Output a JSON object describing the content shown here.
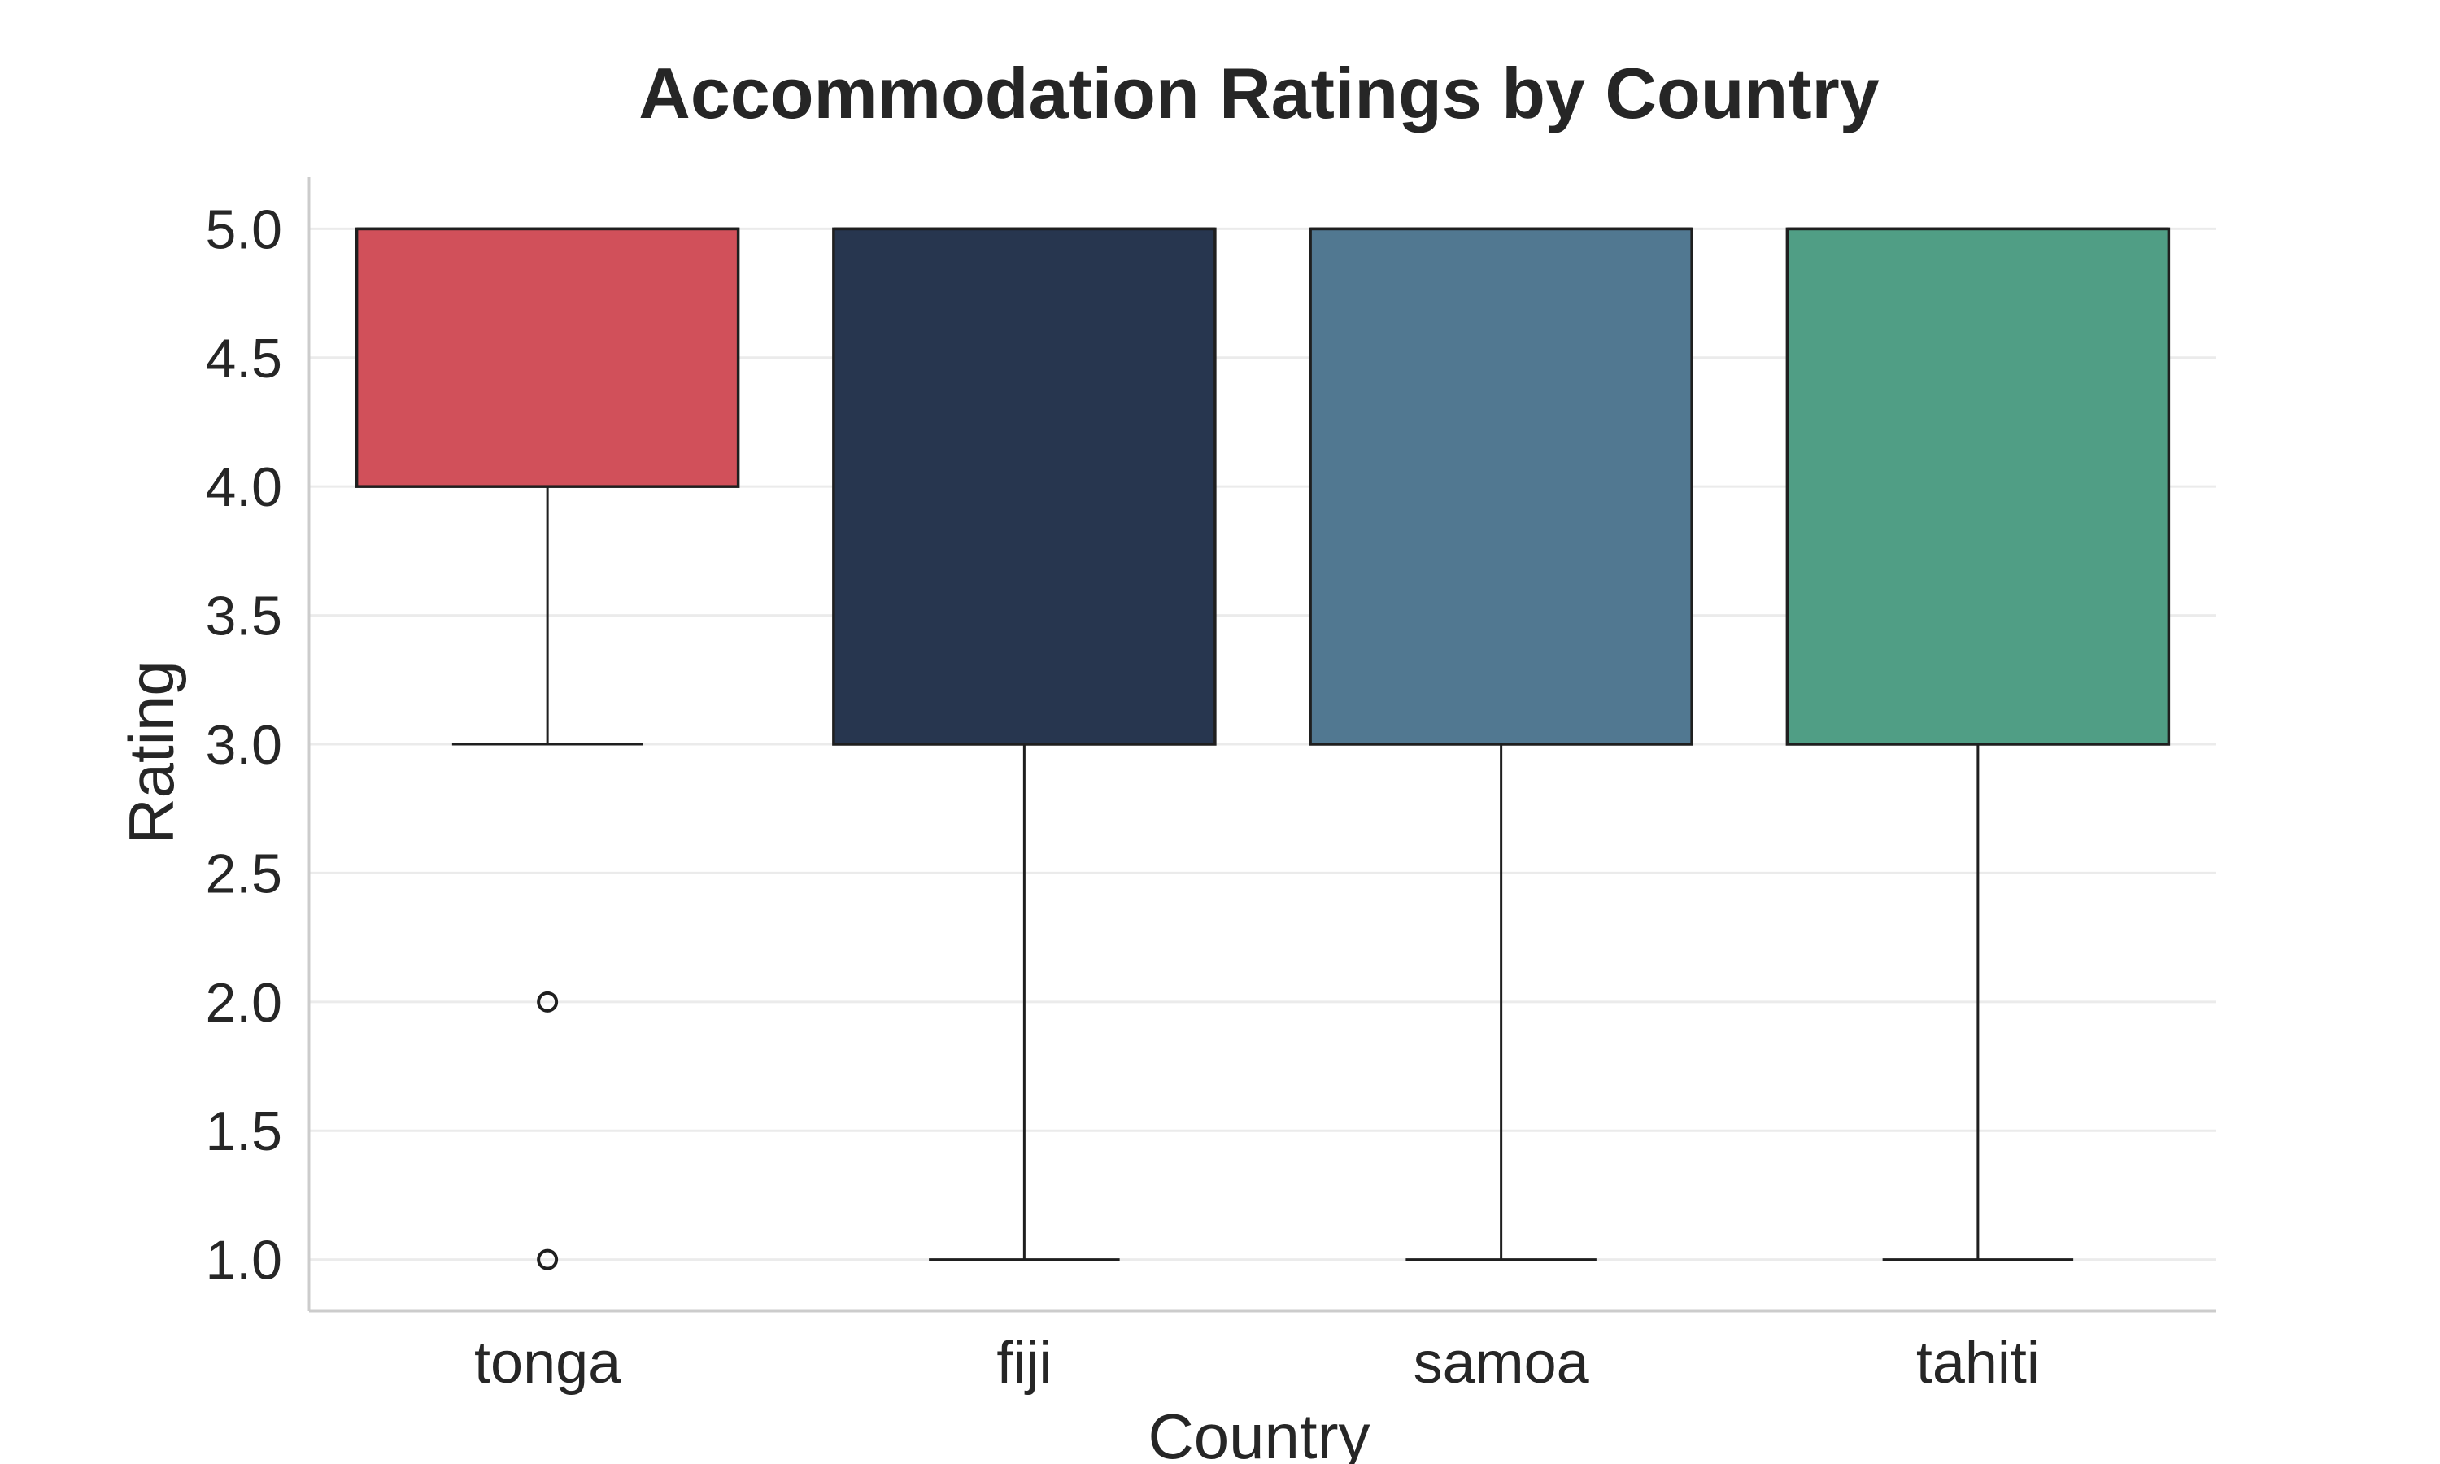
{
  "chart_data": {
    "type": "box",
    "title": "Accommodation Ratings by Country",
    "xlabel": "Country",
    "ylabel": "Rating",
    "ylim": [
      0.8,
      5.2
    ],
    "yticks": [
      1.0,
      1.5,
      2.0,
      2.5,
      3.0,
      3.5,
      4.0,
      4.5,
      5.0
    ],
    "ytick_labels": [
      "1.0",
      "1.5",
      "2.0",
      "2.5",
      "3.0",
      "3.5",
      "4.0",
      "4.5",
      "5.0"
    ],
    "grid": true,
    "categories": [
      "tonga",
      "fiji",
      "samoa",
      "tahiti"
    ],
    "boxes": [
      {
        "category": "tonga",
        "whisker_low": 3.0,
        "q1": 4.0,
        "median": 5.0,
        "q3": 5.0,
        "whisker_high": 5.0,
        "outliers": [
          2.0,
          1.0
        ],
        "color": "#d1505a"
      },
      {
        "category": "fiji",
        "whisker_low": 1.0,
        "q1": 3.0,
        "median": 5.0,
        "q3": 5.0,
        "whisker_high": 5.0,
        "outliers": [],
        "color": "#27364f"
      },
      {
        "category": "samoa",
        "whisker_low": 1.0,
        "q1": 3.0,
        "median": 5.0,
        "q3": 5.0,
        "whisker_high": 5.0,
        "outliers": [],
        "color": "#517891"
      },
      {
        "category": "tahiti",
        "whisker_low": 1.0,
        "q1": 3.0,
        "median": 5.0,
        "q3": 5.0,
        "whisker_high": 5.0,
        "outliers": [],
        "color": "#509e85"
      }
    ]
  }
}
